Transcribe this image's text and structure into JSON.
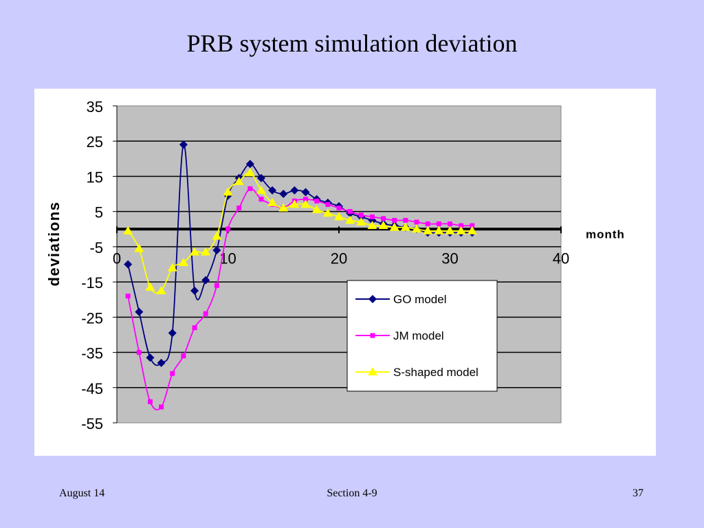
{
  "slide": {
    "title": "PRB system simulation deviation",
    "footer_left": "August 14",
    "footer_center": "Section 4-9",
    "footer_right": "37"
  },
  "colors": {
    "background": "#ccccff",
    "plot_area": "#c0c0c0",
    "go_model": "#000080",
    "jm_model": "#ff00ff",
    "s_shaped_model": "#ffff00"
  },
  "chart_data": {
    "type": "line",
    "title": "",
    "xlabel": "month",
    "ylabel": "deviations",
    "xlim": [
      0,
      40
    ],
    "ylim": [
      -55,
      35
    ],
    "x_ticks": [
      "0",
      "10",
      "20",
      "30",
      "40"
    ],
    "y_ticks": [
      "35",
      "25",
      "15",
      "5",
      "-5",
      "-15",
      "-25",
      "-35",
      "-45",
      "-55"
    ],
    "grid": "horizontal",
    "legend_position": "bottom-right",
    "x": [
      1,
      2,
      3,
      4,
      5,
      6,
      7,
      8,
      9,
      10,
      11,
      12,
      13,
      14,
      15,
      16,
      17,
      18,
      19,
      20,
      21,
      22,
      23,
      24,
      25,
      26,
      27,
      28,
      29,
      30,
      31,
      32
    ],
    "series": [
      {
        "name": "GO model",
        "marker": "diamond",
        "values": [
          -10,
          -23.5,
          -36.5,
          -38,
          -29.5,
          24,
          -17.5,
          -14.5,
          -6,
          9.5,
          14.5,
          18.5,
          14.5,
          11,
          10,
          11,
          10.5,
          8.5,
          7.5,
          6.5,
          4.5,
          3.5,
          2.5,
          1.5,
          1,
          0.5,
          0,
          -1,
          -1,
          -1,
          -1,
          -1
        ]
      },
      {
        "name": "JM model",
        "marker": "square",
        "values": [
          -19,
          -35,
          -49,
          -50.5,
          -41,
          -36,
          -28,
          -24,
          -16,
          0,
          6,
          11.5,
          8.5,
          7,
          6,
          8,
          8.5,
          8,
          7,
          6,
          5,
          4,
          3.5,
          3,
          2.5,
          2.5,
          2,
          1.5,
          1.5,
          1.5,
          1,
          1
        ]
      },
      {
        "name": "S-shaped model",
        "marker": "triangle",
        "values": [
          -0.5,
          -5.5,
          -16.5,
          -17.5,
          -11,
          -9.5,
          -6.5,
          -6.5,
          -2,
          10.5,
          13.5,
          16,
          11,
          7.5,
          6,
          7,
          7,
          5.5,
          4.5,
          3.5,
          2.5,
          2,
          1,
          1,
          0.5,
          0.5,
          0,
          -0.5,
          -0.5,
          -0.5,
          -0.5,
          -0.5
        ]
      }
    ]
  }
}
